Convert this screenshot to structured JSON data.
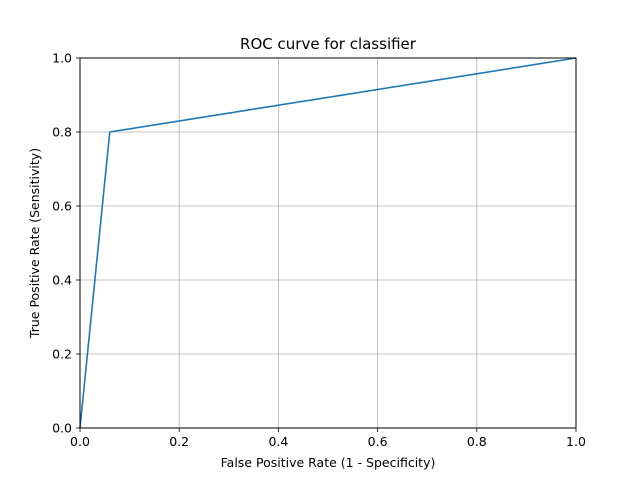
{
  "chart_data": {
    "type": "line",
    "title": "ROC curve for classifier",
    "xlabel": "False Positive Rate (1 - Specificity)",
    "ylabel": "True Positive Rate (Sensitivity)",
    "xlim": [
      0.0,
      1.0
    ],
    "ylim": [
      0.0,
      1.0
    ],
    "xticks": [
      "0.0",
      "0.2",
      "0.4",
      "0.6",
      "0.8",
      "1.0"
    ],
    "yticks": [
      "0.0",
      "0.2",
      "0.4",
      "0.6",
      "0.8",
      "1.0"
    ],
    "grid": true,
    "series": [
      {
        "color": "#1f77b4",
        "x": [
          0.0,
          0.06,
          1.0
        ],
        "y": [
          0.0,
          0.8,
          1.0
        ]
      }
    ]
  }
}
